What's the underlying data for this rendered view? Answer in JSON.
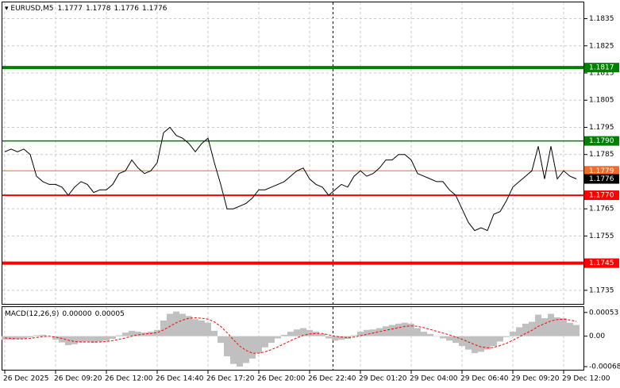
{
  "chart_data": [
    {
      "type": "line",
      "title": "EURUSD,M5",
      "ohlc": [
        1.1777,
        1.1778,
        1.1776,
        1.1776
      ],
      "categories": [
        "26 Dec 2025",
        null,
        null,
        null,
        null,
        null,
        null,
        null,
        "26 Dec 09:20",
        null,
        null,
        null,
        null,
        null,
        null,
        null,
        "26 Dec 12:00",
        null,
        null,
        null,
        null,
        null,
        null,
        null,
        "26 Dec 14:40",
        null,
        null,
        null,
        null,
        null,
        null,
        null,
        "26 Dec 17:20",
        null,
        null,
        null,
        null,
        null,
        null,
        null,
        "26 Dec 20:00",
        null,
        null,
        null,
        null,
        null,
        null,
        null,
        "26 Dec 22:40",
        null,
        null,
        null,
        null,
        null,
        null,
        null,
        "29 Dec 01:20",
        null,
        null,
        null,
        null,
        null,
        null,
        null,
        "29 Dec 04:00",
        null,
        null,
        null,
        null,
        null,
        null,
        null,
        "29 Dec 06:40",
        null,
        null,
        null,
        null,
        null,
        null,
        null,
        "29 Dec 09:20",
        null,
        null,
        null,
        null,
        null,
        null,
        null,
        "29 Dec 12:00",
        null,
        null
      ],
      "series": [
        {
          "color": "#000000",
          "values": [
            1.1786,
            1.1787,
            1.1786,
            1.1787,
            1.1785,
            1.1777,
            1.1775,
            1.1774,
            1.1774,
            1.1773,
            1.177,
            1.1773,
            1.1775,
            1.1774,
            1.1771,
            1.1772,
            1.1772,
            1.1774,
            1.1778,
            1.1779,
            1.1783,
            1.178,
            1.1778,
            1.1779,
            1.1782,
            1.1793,
            1.1795,
            1.1792,
            1.1791,
            1.1789,
            1.1786,
            1.1789,
            1.1791,
            1.1782,
            1.1774,
            1.1765,
            1.1765,
            1.1766,
            1.1767,
            1.1769,
            1.1772,
            1.1772,
            1.1773,
            1.1774,
            1.1775,
            1.1777,
            1.1779,
            1.178,
            1.1776,
            1.1774,
            1.1773,
            1.177,
            1.1772,
            1.1774,
            1.1773,
            1.1777,
            1.1779,
            1.1777,
            1.1778,
            1.178,
            1.1783,
            1.1783,
            1.1785,
            1.1785,
            1.1783,
            1.1778,
            1.1777,
            1.1776,
            1.1775,
            1.1775,
            1.1772,
            1.177,
            1.1765,
            1.176,
            1.1757,
            1.1758,
            1.1757,
            1.1763,
            1.1764,
            1.1768,
            1.1773,
            1.1775,
            1.1777,
            1.1779,
            1.1788,
            1.1776,
            1.1788,
            1.1776,
            1.1779,
            1.1777,
            1.1776
          ]
        }
      ],
      "levels": [
        {
          "value": 1.1817,
          "label": "1.1817",
          "color": "#008000",
          "width": 4
        },
        {
          "value": 1.179,
          "label": "1.1790",
          "color": "#008000",
          "width": 1.5
        },
        {
          "value": 1.1779,
          "label": "1.1779",
          "color": "#f26b2a",
          "width": 1
        },
        {
          "value": 1.177,
          "label": "1.1770",
          "color": "#ff0000",
          "width": 2
        },
        {
          "value": 1.1745,
          "label": "1.1745",
          "color": "#ff0000",
          "width": 4
        }
      ],
      "last": 1.1776,
      "ylim": [
        1.173,
        1.1841
      ],
      "yticks": [
        1.1835,
        1.1825,
        1.1815,
        1.1805,
        1.1795,
        1.1785,
        1.1765,
        1.1755,
        1.1735
      ],
      "grid": true
    },
    {
      "type": "macd",
      "title": "MACD(12,26,9)",
      "readings": [
        {
          "value": 0,
          "label": "0.00000"
        },
        {
          "value": 5e-05,
          "label": "0.00005"
        }
      ],
      "series": [
        {
          "type": "bar",
          "color": "#c0c0c0",
          "values": [
            -8e-05,
            -8e-05,
            -7e-05,
            -6e-05,
            -3e-05,
            2e-05,
            3e-05,
            0,
            -8e-05,
            -0.00014,
            -0.0002,
            -0.00018,
            -0.00014,
            -0.00012,
            -0.00015,
            -0.00012,
            -0.0001,
            -6e-05,
            2e-05,
            8e-05,
            0.00012,
            0.0001,
            8e-05,
            0.0001,
            0.00014,
            0.00035,
            0.0005,
            0.00055,
            0.0005,
            0.00045,
            0.00038,
            0.00035,
            0.0003,
            0.00012,
            -0.00015,
            -0.00045,
            -0.00062,
            -0.00068,
            -0.0006,
            -0.0005,
            -0.00038,
            -0.00025,
            -0.00015,
            -5e-05,
            3e-05,
            0.0001,
            0.00015,
            0.00018,
            0.00014,
            0.0001,
            5e-05,
            -5e-05,
            -0.0001,
            -8e-05,
            -6e-05,
            2e-05,
            0.0001,
            0.00014,
            0.00015,
            0.00018,
            0.00022,
            0.00025,
            0.00028,
            0.0003,
            0.00028,
            0.00018,
            0.0001,
            5e-05,
            0,
            -5e-05,
            -0.0001,
            -0.00015,
            -0.00022,
            -0.0003,
            -0.00038,
            -0.00035,
            -0.0003,
            -0.00022,
            -0.00012,
            -2e-05,
            0.0001,
            0.0002,
            0.00028,
            0.00032,
            0.00048,
            0.0004,
            0.0005,
            0.00042,
            0.0004,
            0.0003,
            0.00025
          ]
        },
        {
          "type": "line",
          "color": "#ff0000",
          "dashed": true,
          "values": [
            -4e-05,
            -5e-05,
            -6e-05,
            -6e-05,
            -5e-05,
            -3e-05,
            -1e-05,
            0,
            -2e-05,
            -5e-05,
            -9e-05,
            -0.00012,
            -0.00013,
            -0.00013,
            -0.00013,
            -0.00013,
            -0.00012,
            -0.0001,
            -7e-05,
            -4e-05,
            0,
            3e-05,
            5e-05,
            6e-05,
            8e-05,
            0.00014,
            0.00022,
            0.0003,
            0.00036,
            0.0004,
            0.00041,
            0.0004,
            0.00038,
            0.00032,
            0.00022,
            8e-05,
            -8e-05,
            -0.00022,
            -0.00032,
            -0.00038,
            -0.00038,
            -0.00035,
            -0.0003,
            -0.00024,
            -0.00017,
            -0.0001,
            -4e-05,
            2e-05,
            5e-05,
            6e-05,
            6e-05,
            3e-05,
            0,
            -2e-05,
            -3e-05,
            -2e-05,
            1e-05,
            4e-05,
            7e-05,
            0.0001,
            0.00013,
            0.00016,
            0.00019,
            0.00022,
            0.00023,
            0.00022,
            0.00019,
            0.00015,
            0.00011,
            7e-05,
            3e-05,
            -2e-05,
            -7e-05,
            -0.00013,
            -0.00019,
            -0.00024,
            -0.00026,
            -0.00025,
            -0.00021,
            -0.00016,
            -9e-05,
            -2e-05,
            6e-05,
            0.00013,
            0.00022,
            0.00028,
            0.00034,
            0.00037,
            0.00038,
            0.00036,
            0.00033
          ]
        }
      ],
      "ylim": [
        -0.00075,
        0.00065
      ],
      "yticks": [
        0.00053,
        {
          "value": 0,
          "label": "0.00"
        },
        -0.00068
      ]
    }
  ]
}
